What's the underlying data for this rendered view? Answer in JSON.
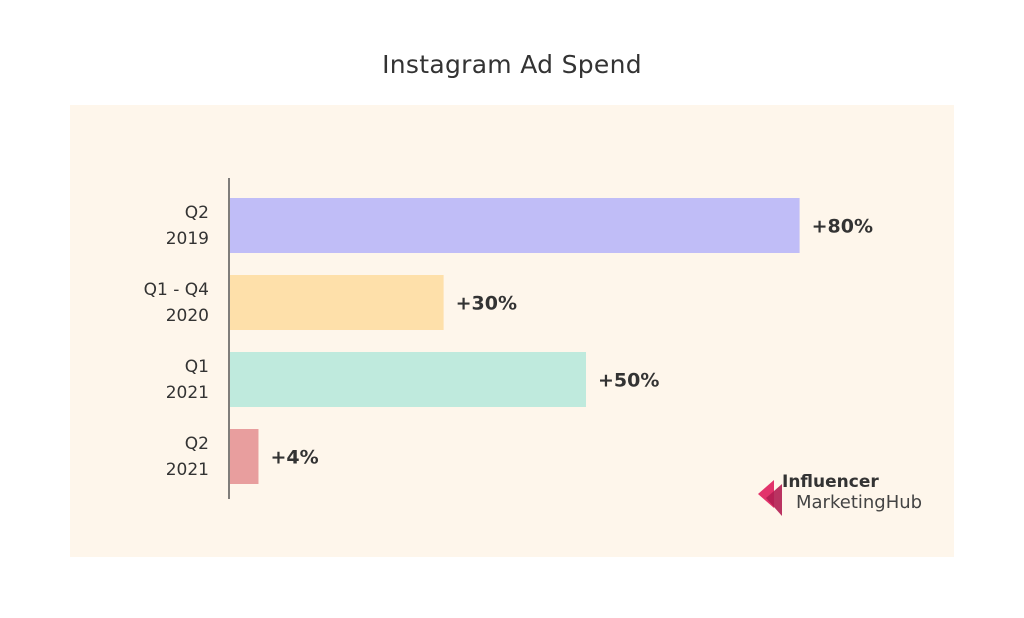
{
  "chart_data": {
    "type": "bar",
    "orientation": "horizontal",
    "title": "Instagram Ad Spend",
    "categories": [
      [
        "Q2",
        "2019"
      ],
      [
        "Q1 - Q4",
        "2020"
      ],
      [
        "Q1",
        "2021"
      ],
      [
        "Q2",
        "2021"
      ]
    ],
    "values": [
      80,
      30,
      50,
      4
    ],
    "data_labels": [
      "+80%",
      "+30%",
      "+50%",
      "+4%"
    ],
    "bar_colors": [
      "#c0bdf7",
      "#fee0aa",
      "#bfeadd",
      "#e89e9e"
    ],
    "xlim": [
      0,
      100
    ],
    "grid": false,
    "legend": "none"
  },
  "colors": {
    "panel_background": "#fef6eb",
    "axis": "#555555",
    "text": "#333333",
    "logo_accent": "#e2336b"
  },
  "logo": {
    "line1": "Influencer",
    "line2": "MarketingHub"
  }
}
